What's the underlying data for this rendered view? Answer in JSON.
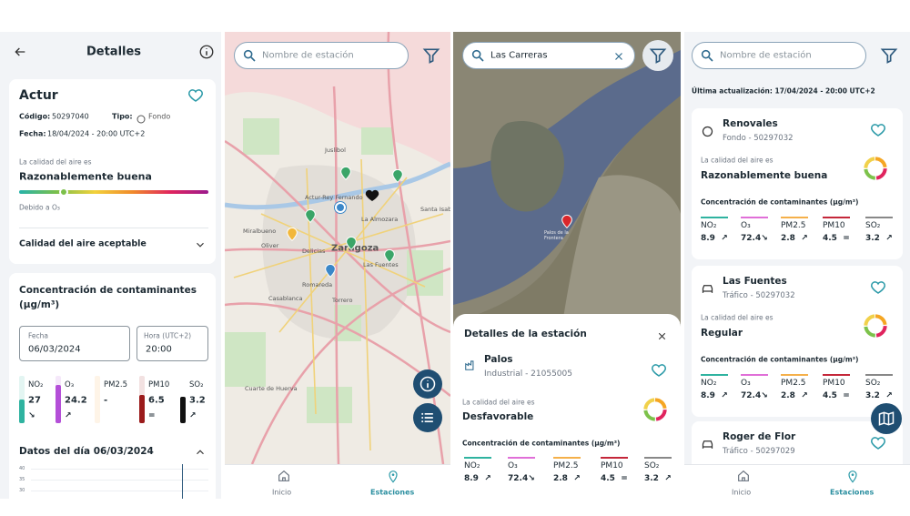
{
  "screens": [
    {
      "header": {
        "title": "Detalles"
      },
      "station": {
        "name": "Actur",
        "code_label": "Código:",
        "code": "50297040",
        "type_label": "Tipo:",
        "type": "Fondo",
        "date_label": "Fecha:",
        "date": "18/04/2024 - 20:00 UTC+2"
      },
      "quality": {
        "label": "La calidad del aire es",
        "value": "Razonablemente buena",
        "cause": "Debido a O₃"
      },
      "accordion": "Calidad del aire aceptable",
      "concentration": {
        "title": "Concentración de contaminantes (µg/m³)",
        "date_field": {
          "label": "Fecha",
          "value": "06/03/2024"
        },
        "hour_field": {
          "label": "Hora (UTC+2)",
          "value": "20:00"
        },
        "pollutants": [
          {
            "name": "NO₂",
            "value": "27",
            "trend": "↘"
          },
          {
            "name": "O₃",
            "value": "24.2",
            "trend": "↗"
          },
          {
            "name": "PM2.5",
            "value": "-",
            "trend": ""
          },
          {
            "name": "PM10",
            "value": "6.5",
            "trend": "="
          },
          {
            "name": "SO₂",
            "value": "3.2",
            "trend": "↗"
          }
        ]
      },
      "daily": {
        "title": "Datos del día 06/03/2024",
        "yticks": [
          "40",
          "35",
          "30"
        ]
      }
    },
    {
      "search": {
        "placeholder": "Nombre de estación"
      },
      "map_labels": [
        "Juslibol",
        "Actur-Rey Fernando",
        "La Almozara",
        "Miralbueno",
        "Oliver",
        "Delicias",
        "Zaragoza",
        "Las Fuentes",
        "Romareda",
        "Casablanca",
        "Torrero",
        "Cuarte de Huerva",
        "Santa Isabel"
      ],
      "nav": [
        "Inicio",
        "Estaciones"
      ]
    },
    {
      "search": {
        "value": "Las Carreras"
      },
      "map_labels": [
        "Palos de la Frontera"
      ],
      "sheet": {
        "title": "Detalles de la estación",
        "station": {
          "name": "Palos",
          "subtitle": "Industrial - 21055005"
        },
        "quality": {
          "label": "La calidad del aire es",
          "value": "Desfavorable"
        },
        "concentration": {
          "title": "Concentración de contaminantes (µg/m³)",
          "pollutants": [
            {
              "name": "NO₂",
              "value": "8.9",
              "trend": "↗"
            },
            {
              "name": "O₃",
              "value": "72.4",
              "trend": "↘"
            },
            {
              "name": "PM2.5",
              "value": "2.8",
              "trend": "↗"
            },
            {
              "name": "PM10",
              "value": "4.5",
              "trend": "="
            },
            {
              "name": "SO₂",
              "value": "3.2",
              "trend": "↗"
            }
          ]
        }
      }
    },
    {
      "search": {
        "placeholder": "Nombre de estación"
      },
      "updated": "Última actualización: 17/04/2024 - 20:00 UTC+2",
      "stations": [
        {
          "name": "Renovales",
          "subtitle": "Fondo - 50297032",
          "quality_label": "La calidad del aire es",
          "quality": "Razonablemente buena",
          "concentration_title": "Concentración de contaminantes (µg/m³)",
          "pollutants": [
            {
              "name": "NO₂",
              "value": "8.9",
              "trend": "↗"
            },
            {
              "name": "O₃",
              "value": "72.4",
              "trend": "↘"
            },
            {
              "name": "PM2.5",
              "value": "2.8",
              "trend": "↗"
            },
            {
              "name": "PM10",
              "value": "4.5",
              "trend": "="
            },
            {
              "name": "SO₂",
              "value": "3.2",
              "trend": "↗"
            }
          ]
        },
        {
          "name": "Las Fuentes",
          "subtitle": "Tráfico - 50297032",
          "quality_label": "La calidad del aire es",
          "quality": "Regular",
          "concentration_title": "Concentración de contaminantes (µg/m³)",
          "pollutants": [
            {
              "name": "NO₂",
              "value": "8.9",
              "trend": "↗"
            },
            {
              "name": "O₃",
              "value": "72.4",
              "trend": "↘"
            },
            {
              "name": "PM2.5",
              "value": "2.8",
              "trend": "↗"
            },
            {
              "name": "PM10",
              "value": "4.5",
              "trend": "="
            },
            {
              "name": "SO₂",
              "value": "3.2",
              "trend": "↗"
            }
          ]
        },
        {
          "name": "Roger de Flor",
          "subtitle": "Tráfico - 50297029"
        }
      ],
      "nav": [
        "Inicio",
        "Estaciones"
      ]
    }
  ]
}
